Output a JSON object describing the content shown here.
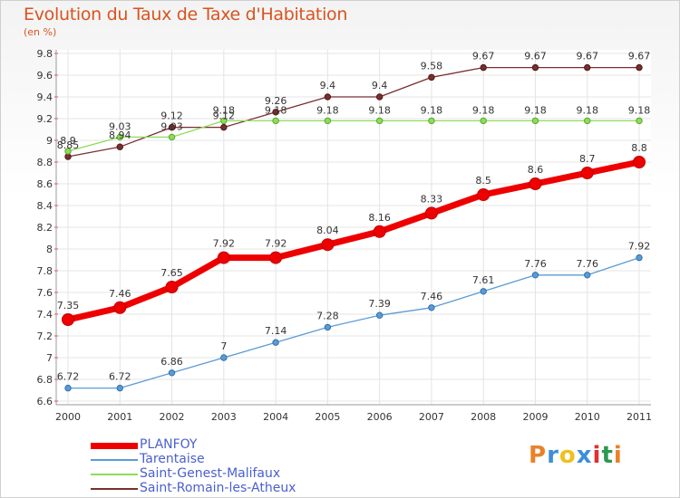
{
  "title": "Evolution du Taux de Taxe d'Habitation",
  "subtitle": "(en %)",
  "logo": {
    "text": "Proxiti",
    "colors": [
      "#e8822a",
      "#3c8fd8",
      "#f0c020",
      "#3c8fd8",
      "#e03030",
      "#2a9a50",
      "#e8822a"
    ]
  },
  "chart_data": {
    "type": "line",
    "x": [
      "2000",
      "2001",
      "2002",
      "2003",
      "2004",
      "2005",
      "2006",
      "2007",
      "2008",
      "2009",
      "2010",
      "2011"
    ],
    "ylim": [
      6.6,
      9.8
    ],
    "yticks": [
      "6.6",
      "6.8",
      "7",
      "7.2",
      "7.4",
      "7.6",
      "7.8",
      "8",
      "8.2",
      "8.4",
      "8.6",
      "8.8",
      "9",
      "9.2",
      "9.4",
      "9.6",
      "9.8"
    ],
    "grid": true,
    "legend_position": "bottom-left",
    "series": [
      {
        "name": "PLANFOY",
        "color": "#ee0000",
        "values": [
          7.35,
          7.46,
          7.65,
          7.92,
          7.92,
          8.04,
          8.16,
          8.33,
          8.5,
          8.6,
          8.7,
          8.8
        ],
        "labels": [
          "7.35",
          "7.46",
          "7.65",
          "7.92",
          "7.92",
          "8.04",
          "8.16",
          "8.33",
          "8.5",
          "8.6",
          "8.7",
          "8.8"
        ]
      },
      {
        "name": "Tarentaise",
        "color": "#5b9bd5",
        "values": [
          6.72,
          6.72,
          6.86,
          7.0,
          7.14,
          7.28,
          7.39,
          7.46,
          7.61,
          7.76,
          7.76,
          7.92
        ],
        "labels": [
          "6.72",
          "6.72",
          "6.86",
          "7",
          "7.14",
          "7.28",
          "7.39",
          "7.46",
          "7.61",
          "7.76",
          "7.76",
          "7.92"
        ]
      },
      {
        "name": "Saint-Genest-Malifaux",
        "color": "#8fdc5a",
        "values": [
          8.9,
          9.03,
          9.03,
          9.18,
          9.18,
          9.18,
          9.18,
          9.18,
          9.18,
          9.18,
          9.18,
          9.18
        ],
        "labels": [
          "8.9",
          "9.03",
          "9.03",
          "9.18",
          "9.18",
          "9.18",
          "9.18",
          "9.18",
          "9.18",
          "9.18",
          "9.18",
          "9.18"
        ]
      },
      {
        "name": "Saint-Romain-les-Atheux",
        "color": "#7a2e2e",
        "values": [
          8.85,
          8.94,
          9.12,
          9.12,
          9.26,
          9.4,
          9.4,
          9.58,
          9.67,
          9.67,
          9.67,
          9.67
        ],
        "labels": [
          "8.85",
          "8.94",
          "9.12",
          "9.12",
          "9.26",
          "9.4",
          "9.4",
          "9.58",
          "9.67",
          "9.67",
          "9.67",
          "9.67"
        ]
      }
    ]
  }
}
